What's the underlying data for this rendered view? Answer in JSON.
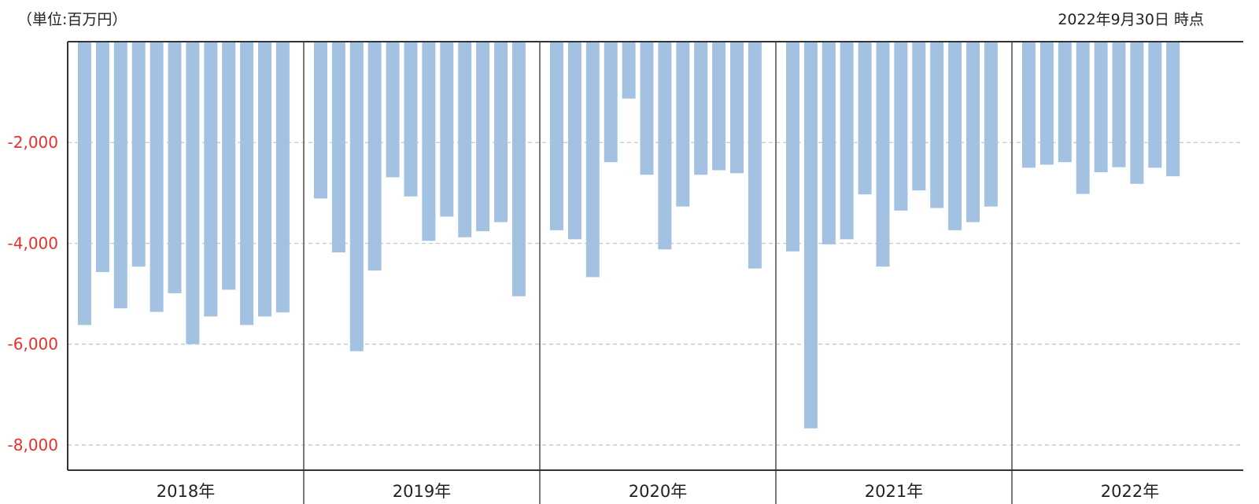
{
  "header": {
    "unit_label": "（単位:百万円）",
    "as_of_label": "2022年9月30日 時点"
  },
  "colors": {
    "bar": "#a3c2e1",
    "tick_label": "#e8302a",
    "grid": "#c8c8c8",
    "axis": "#333333",
    "separator": "#7a7a7a"
  },
  "chart_data": {
    "type": "bar",
    "title": "",
    "xlabel": "",
    "ylabel": "",
    "ylim": [
      -8500,
      0
    ],
    "yticks": [
      -2000,
      -4000,
      -6000,
      -8000
    ],
    "ytick_labels": [
      "-2,000",
      "-4,000",
      "-6,000",
      "-8,000"
    ],
    "grid": true,
    "groups": [
      {
        "label": "2018年",
        "values": [
          -5620,
          -4570,
          -5290,
          -4460,
          -5360,
          -4990,
          -6000,
          -5450,
          -4920,
          -5620,
          -5450,
          -5370
        ]
      },
      {
        "label": "2019年",
        "values": [
          -3110,
          -4180,
          -6140,
          -4540,
          -2690,
          -3070,
          -3950,
          -3470,
          -3880,
          -3760,
          -3580,
          -5050
        ]
      },
      {
        "label": "2020年",
        "values": [
          -3740,
          -3920,
          -4670,
          -2390,
          -1130,
          -2640,
          -4120,
          -3270,
          -2640,
          -2550,
          -2610,
          -4500
        ]
      },
      {
        "label": "2021年",
        "values": [
          -4160,
          -7670,
          -4020,
          -3920,
          -3030,
          -4460,
          -3350,
          -2950,
          -3300,
          -3740,
          -3580,
          -3270
        ]
      },
      {
        "label": "2022年",
        "values": [
          -2500,
          -2440,
          -2390,
          -3020,
          -2590,
          -2490,
          -2820,
          -2500,
          -2670
        ]
      }
    ]
  }
}
